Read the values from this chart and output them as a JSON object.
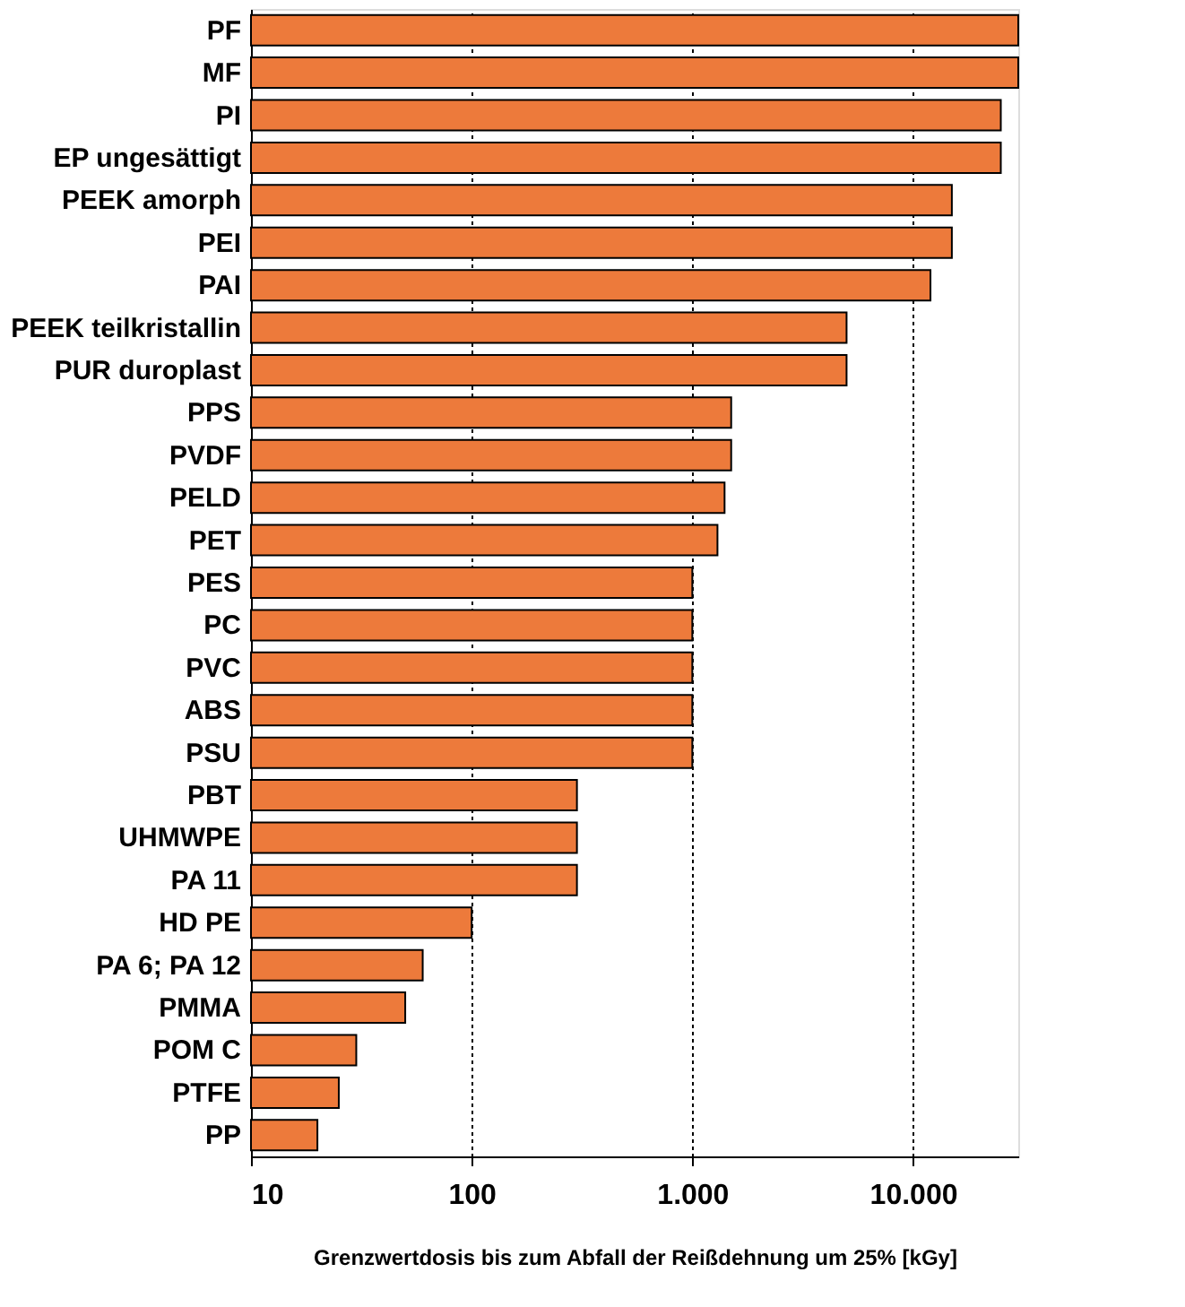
{
  "chart_data": {
    "type": "bar",
    "orientation": "horizontal",
    "log": "x",
    "grid": "x",
    "xlabel": "Grenzwertdosis bis zum Abfall der Reißdehnung um 25% [kGy]",
    "categories": [
      "PF",
      "MF",
      "PI",
      "EP ungesättigt",
      "PEEK amorph",
      "PEI",
      "PAI",
      "PEEK teilkristallin",
      "PUR duroplast",
      "PPS",
      "PVDF",
      "PELD",
      "PET",
      "PES",
      "PC",
      "PVC",
      "ABS",
      "PSU",
      "PBT",
      "UHMWPE",
      "PA 11",
      "HD PE",
      "PA 6; PA 12",
      "PMMA",
      "POM C",
      "PTFE",
      "PP"
    ],
    "values": [
      30000,
      30000,
      25000,
      25000,
      15000,
      15000,
      12000,
      5000,
      5000,
      1500,
      1500,
      1400,
      1300,
      1000,
      1000,
      1000,
      1000,
      1000,
      300,
      300,
      300,
      100,
      60,
      50,
      30,
      25,
      20
    ],
    "color": "#ed7a3b",
    "xlim": [
      10,
      30000
    ],
    "xticks": [
      10,
      100,
      {
        "value": 1000,
        "label": "1.000"
      },
      {
        "value": 10000,
        "label": "10.000"
      }
    ]
  }
}
